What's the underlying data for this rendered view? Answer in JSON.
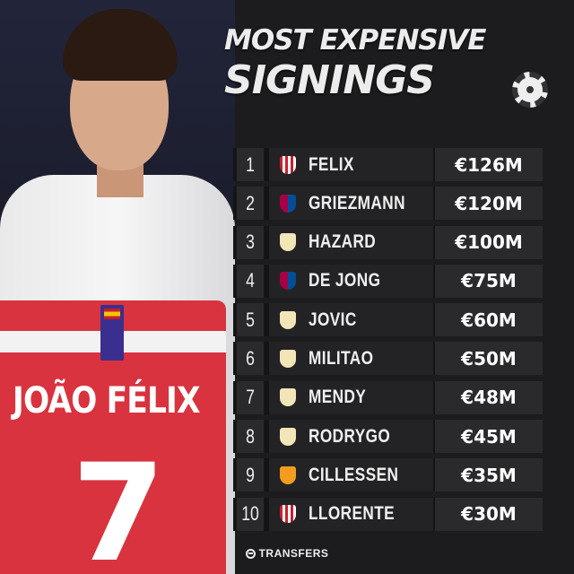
{
  "title": {
    "line1": "MOST EXPENSIVE",
    "line2": "SIGNINGS",
    "badge_icon": "laliga-ball-icon"
  },
  "photo": {
    "shirt_name": "JOÃO FÉLIX",
    "shirt_number": "7"
  },
  "club_colors": {
    "atletico": "#c8202f",
    "barcelona": "#a50044",
    "real-madrid": "#f2e6b8",
    "valencia": "#f39c1f"
  },
  "signings": [
    {
      "rank": "1",
      "club": "atletico",
      "name": "FELIX",
      "fee": "€126M"
    },
    {
      "rank": "2",
      "club": "barcelona",
      "name": "GRIEZMANN",
      "fee": "€120M"
    },
    {
      "rank": "3",
      "club": "real-madrid",
      "name": "HAZARD",
      "fee": "€100M"
    },
    {
      "rank": "4",
      "club": "barcelona",
      "name": "DE JONG",
      "fee": "€75M"
    },
    {
      "rank": "5",
      "club": "real-madrid",
      "name": "JOVIC",
      "fee": "€60M"
    },
    {
      "rank": "6",
      "club": "real-madrid",
      "name": "MILITAO",
      "fee": "€50M"
    },
    {
      "rank": "7",
      "club": "real-madrid",
      "name": "MENDY",
      "fee": "€48M"
    },
    {
      "rank": "8",
      "club": "real-madrid",
      "name": "RODRYGO",
      "fee": "€45M"
    },
    {
      "rank": "9",
      "club": "valencia",
      "name": "CILLESSEN",
      "fee": "€35M"
    },
    {
      "rank": "10",
      "club": "atletico",
      "name": "LLORENTE",
      "fee": "€30M"
    }
  ],
  "footer": {
    "brand": "TRANSFERS",
    "icon": "transfers-logo-icon"
  }
}
